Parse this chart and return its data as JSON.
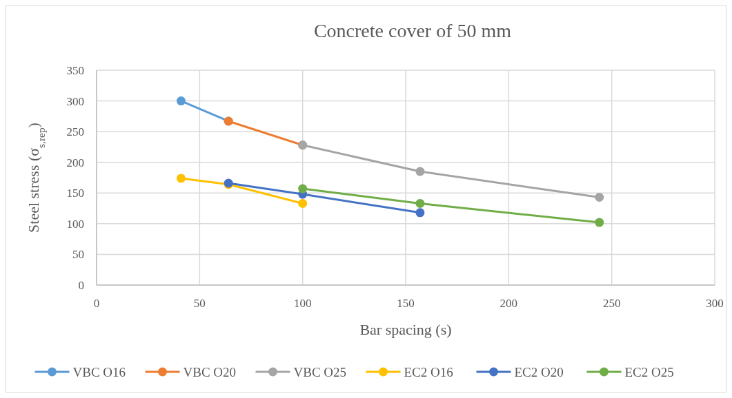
{
  "chart_data": {
    "type": "line",
    "title": "Concrete cover of 50 mm",
    "xlabel": "Bar spacing (s)",
    "ylabel": "Steel stress (σ$_{s,rep}$)",
    "xlim": [
      0,
      300
    ],
    "xticks": [
      0,
      50,
      100,
      150,
      200,
      250,
      300
    ],
    "ylim": [
      0,
      350
    ],
    "yticks": [
      0,
      50,
      100,
      150,
      200,
      250,
      300,
      350
    ],
    "grid": true,
    "legend": "bottom",
    "marker": "circle",
    "line_style": "solid",
    "series": [
      {
        "name": "VBC O16",
        "color": "#5b9bd5",
        "x": [
          41,
          64
        ],
        "values": [
          300,
          267
        ]
      },
      {
        "name": "VBC O20",
        "color": "#ed7d31",
        "x": [
          64,
          100
        ],
        "values": [
          267,
          228
        ]
      },
      {
        "name": "VBC O25",
        "color": "#a5a5a5",
        "x": [
          100,
          157,
          244
        ],
        "values": [
          228,
          185,
          143
        ]
      },
      {
        "name": "EC2 O16",
        "color": "#ffc000",
        "x": [
          41,
          64,
          100
        ],
        "values": [
          174,
          164,
          133
        ]
      },
      {
        "name": "EC2 O20",
        "color": "#4472c4",
        "x": [
          64,
          100,
          157
        ],
        "values": [
          166,
          148,
          118
        ]
      },
      {
        "name": "EC2 O25",
        "color": "#70ad47",
        "x": [
          100,
          157,
          244
        ],
        "values": [
          157,
          133,
          102
        ]
      }
    ]
  }
}
